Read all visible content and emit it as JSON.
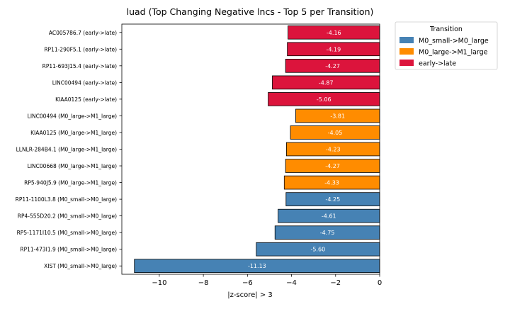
{
  "chart_data": {
    "type": "bar",
    "orientation": "horizontal",
    "title": "luad (Top Changing Negative lncs - Top 5 per Transition)",
    "xlabel": "|z-score| > 3",
    "ylabel": "",
    "xlim": [
      -11.7,
      0
    ],
    "xticks": [
      -10,
      -8,
      -6,
      -4,
      -2,
      0
    ],
    "xtick_labels": [
      "−10",
      "−8",
      "−6",
      "−4",
      "−2",
      "0"
    ],
    "grid": false,
    "legend": {
      "title": "Transition",
      "placement": "outside-top-right",
      "entries": [
        {
          "label": "M0_small->M0_large",
          "color": "#4682b4"
        },
        {
          "label": "M0_large->M1_large",
          "color": "#ff8c00"
        },
        {
          "label": "early->late",
          "color": "#dc143c"
        }
      ]
    },
    "bars": [
      {
        "category": "AC005786.7 (early->late)",
        "value": -4.16,
        "label": "-4.16",
        "group": "early->late"
      },
      {
        "category": "RP11-290F5.1 (early->late)",
        "value": -4.19,
        "label": "-4.19",
        "group": "early->late"
      },
      {
        "category": "RP11-693J15.4 (early->late)",
        "value": -4.27,
        "label": "-4.27",
        "group": "early->late"
      },
      {
        "category": "LINC00494 (early->late)",
        "value": -4.87,
        "label": "-4.87",
        "group": "early->late"
      },
      {
        "category": "KIAA0125 (early->late)",
        "value": -5.06,
        "label": "-5.06",
        "group": "early->late"
      },
      {
        "category": "LINC00494 (M0_large->M1_large)",
        "value": -3.81,
        "label": "-3.81",
        "group": "M0_large->M1_large"
      },
      {
        "category": "KIAA0125 (M0_large->M1_large)",
        "value": -4.05,
        "label": "-4.05",
        "group": "M0_large->M1_large"
      },
      {
        "category": "LLNLR-284B4.1 (M0_large->M1_large)",
        "value": -4.23,
        "label": "-4.23",
        "group": "M0_large->M1_large"
      },
      {
        "category": "LINC00668 (M0_large->M1_large)",
        "value": -4.27,
        "label": "-4.27",
        "group": "M0_large->M1_large"
      },
      {
        "category": "RP5-940J5.9 (M0_large->M1_large)",
        "value": -4.33,
        "label": "-4.33",
        "group": "M0_large->M1_large"
      },
      {
        "category": "RP11-1100L3.8 (M0_small->M0_large)",
        "value": -4.25,
        "label": "-4.25",
        "group": "M0_small->M0_large"
      },
      {
        "category": "RP4-555D20.2 (M0_small->M0_large)",
        "value": -4.61,
        "label": "-4.61",
        "group": "M0_small->M0_large"
      },
      {
        "category": "RP5-1171I10.5 (M0_small->M0_large)",
        "value": -4.75,
        "label": "-4.75",
        "group": "M0_small->M0_large"
      },
      {
        "category": "RP11-473I1.9 (M0_small->M0_large)",
        "value": -5.6,
        "label": "-5.60",
        "group": "M0_small->M0_large"
      },
      {
        "category": "XIST (M0_small->M0_large)",
        "value": -11.13,
        "label": "-11.13",
        "group": "M0_small->M0_large"
      }
    ]
  }
}
